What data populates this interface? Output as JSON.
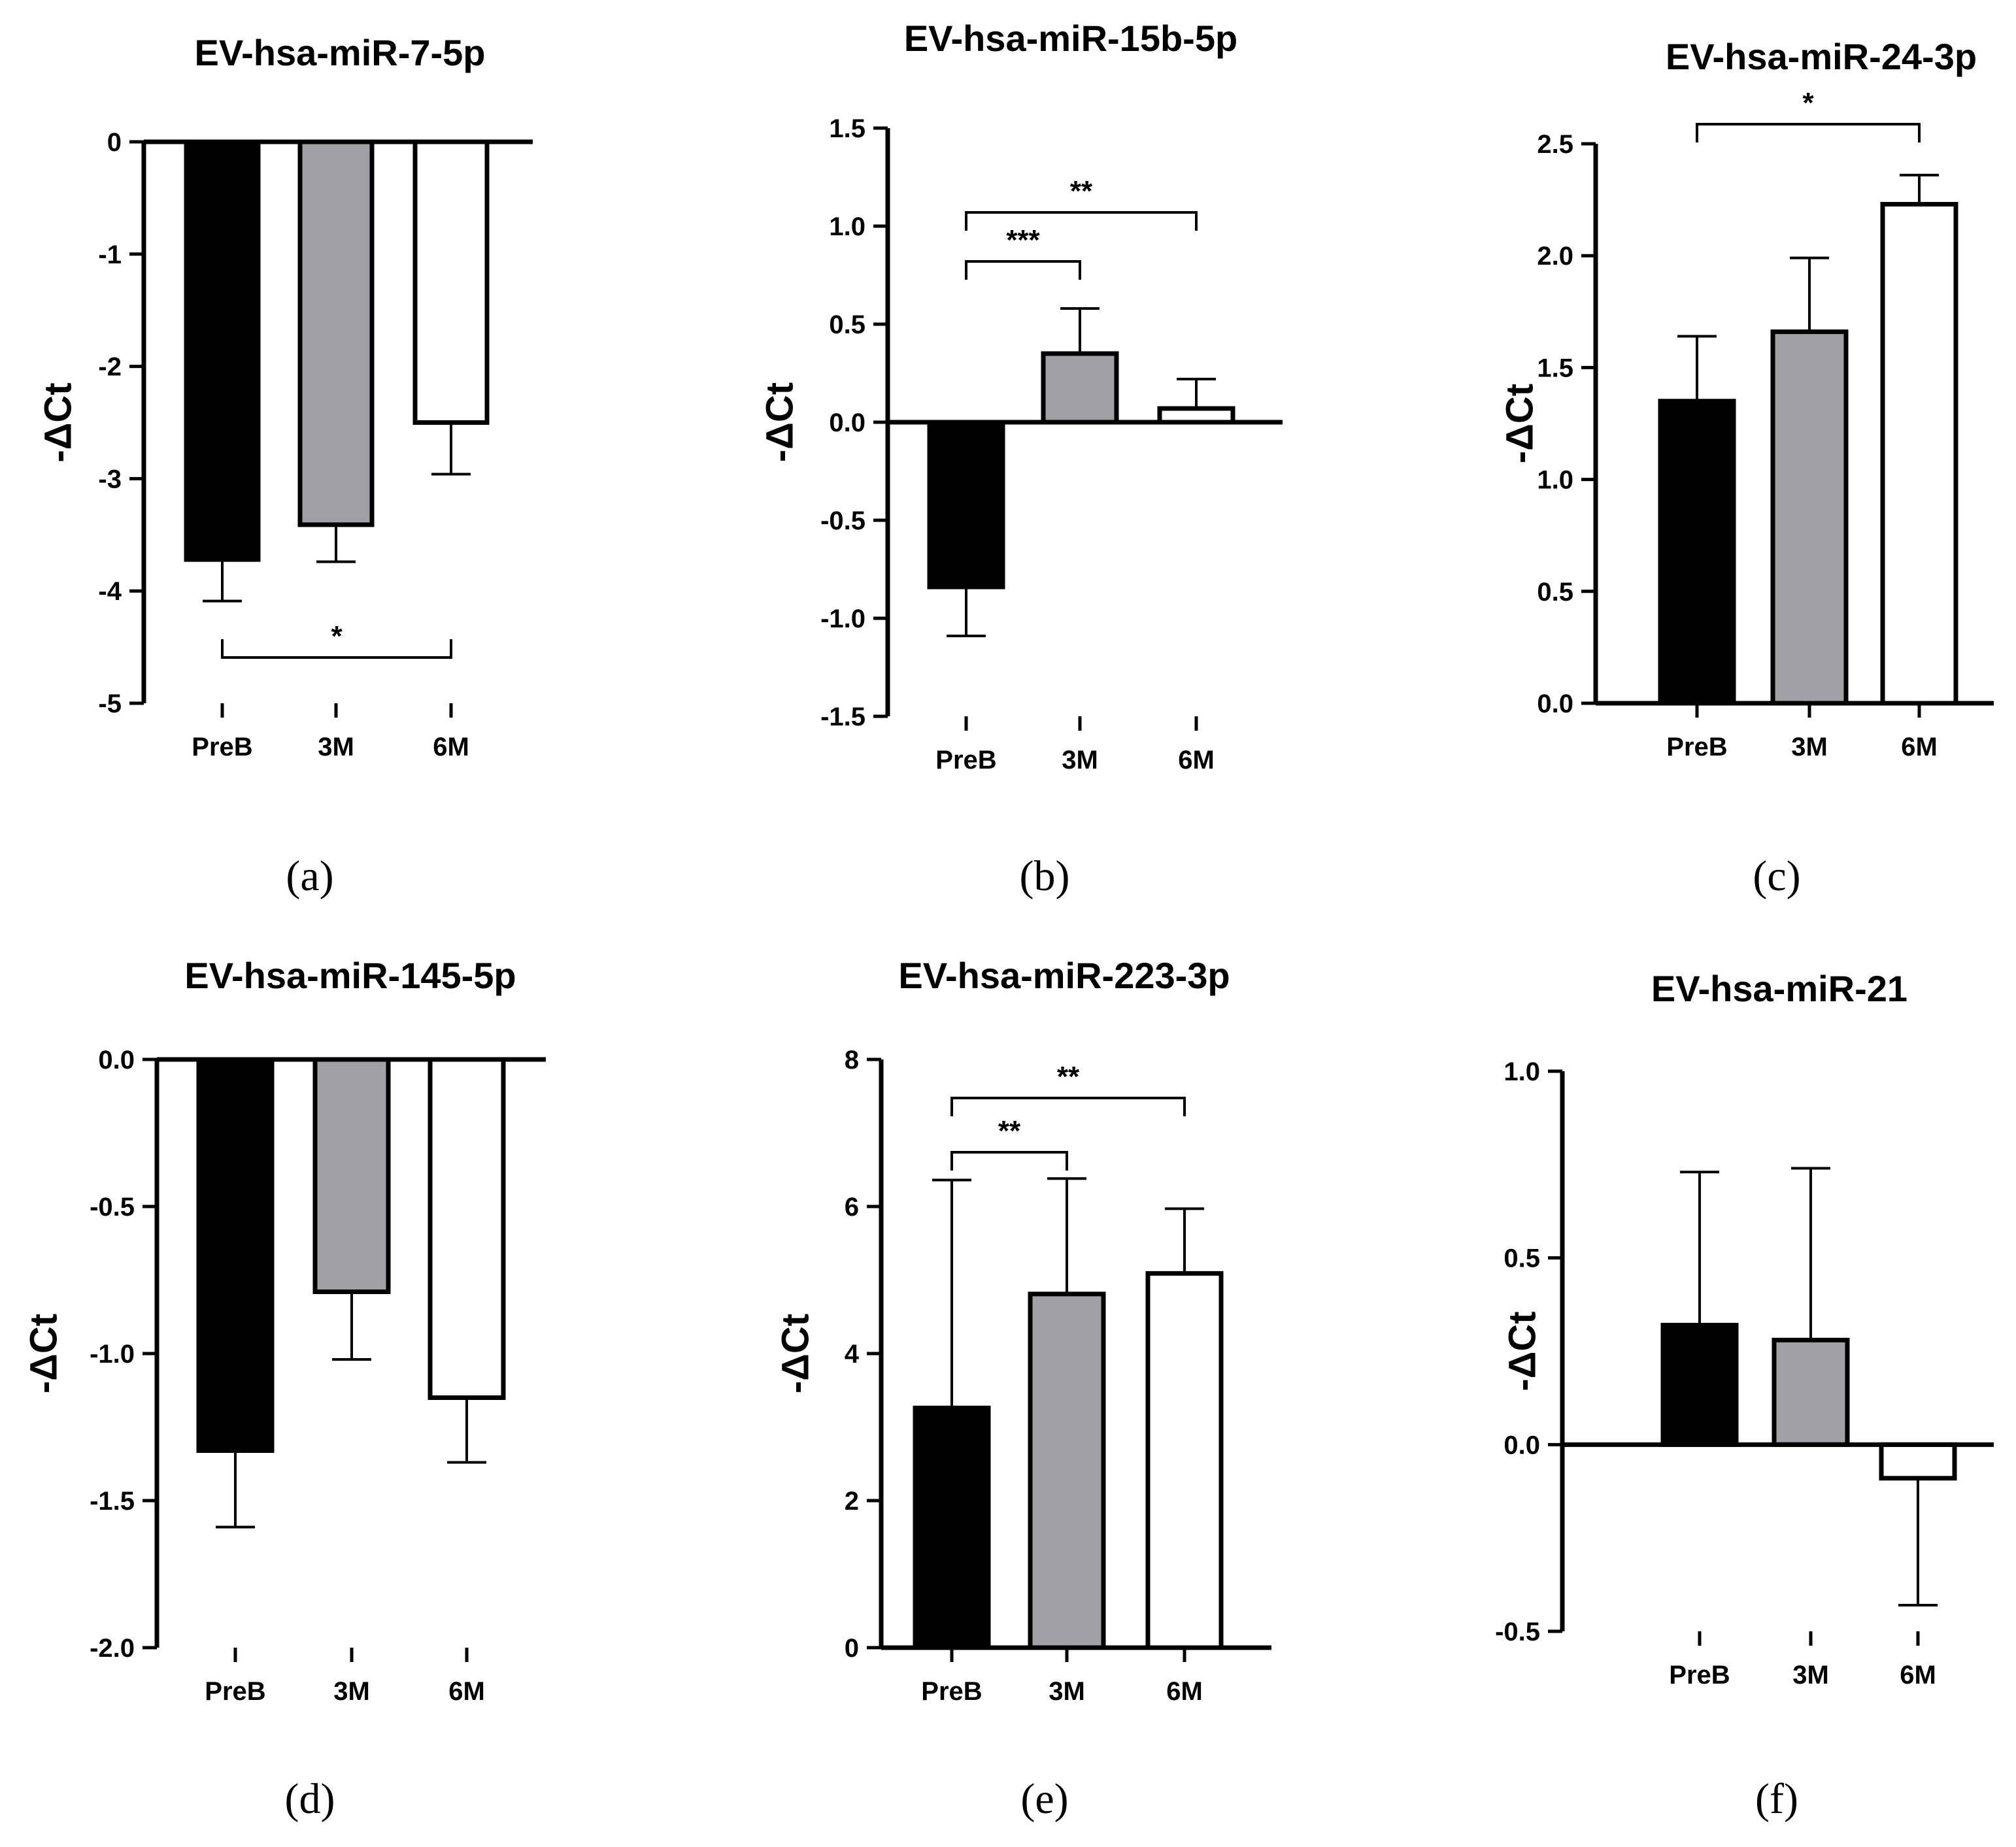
{
  "chart_data": [
    {
      "type": "bar",
      "panel": "(a)",
      "title": "EV-hsa-miR-7-5p",
      "ylabel": "-ΔCt",
      "categories": [
        "PreB",
        "3M",
        "6M"
      ],
      "values": [
        -3.72,
        -3.41,
        -2.5
      ],
      "errors": [
        0.37,
        0.33,
        0.46
      ],
      "bar_colors": [
        "#000000",
        "#a1a1a4",
        "#ffffff"
      ],
      "ylim": [
        -5,
        0
      ],
      "yticks": [
        0,
        -1,
        -2,
        -3,
        -4,
        -5
      ],
      "tick_labels": [
        "0",
        "-1",
        "-2",
        "-3",
        "-4",
        "-5"
      ],
      "brackets": [
        {
          "from": 0,
          "to": 2,
          "label": "*"
        }
      ]
    },
    {
      "type": "bar",
      "panel": "(b)",
      "title": "EV-hsa-miR-15b-5p",
      "ylabel": "-ΔCt",
      "categories": [
        "PreB",
        "3M",
        "6M"
      ],
      "values": [
        -0.84,
        0.35,
        0.07
      ],
      "errors": [
        0.25,
        0.23,
        0.15
      ],
      "bar_colors": [
        "#000000",
        "#a1a1a4",
        "#ffffff"
      ],
      "ylim": [
        -1.5,
        1.5
      ],
      "yticks": [
        1.5,
        1.0,
        0.5,
        0.0,
        -0.5,
        -1.0,
        -1.5
      ],
      "tick_labels": [
        "1.5",
        "1.0",
        "0.5",
        "0.0",
        "-0.5",
        "-1.0",
        "-1.5"
      ],
      "brackets": [
        {
          "from": 0,
          "to": 1,
          "label": "***"
        },
        {
          "from": 0,
          "to": 2,
          "label": "**"
        }
      ]
    },
    {
      "type": "bar",
      "panel": "(c)",
      "title": "EV-hsa-miR-24-3p",
      "ylabel": "-ΔCt",
      "categories": [
        "PreB",
        "3M",
        "6M"
      ],
      "values": [
        1.35,
        1.66,
        2.23
      ],
      "errors": [
        0.29,
        0.33,
        0.13
      ],
      "bar_colors": [
        "#000000",
        "#a1a1a4",
        "#ffffff"
      ],
      "ylim": [
        0,
        2.5
      ],
      "yticks": [
        2.5,
        2.0,
        1.5,
        1.0,
        0.5,
        0.0
      ],
      "tick_labels": [
        "2.5",
        "2.0",
        "1.5",
        "1.0",
        "0.5",
        "0.0"
      ],
      "brackets": [
        {
          "from": 0,
          "to": 2,
          "label": "*"
        }
      ]
    },
    {
      "type": "bar",
      "panel": "(d)",
      "title": "EV-hsa-miR-145-5p",
      "ylabel": "-ΔCt",
      "categories": [
        "PreB",
        "3M",
        "6M"
      ],
      "values": [
        -1.33,
        -0.79,
        -1.15
      ],
      "errors": [
        0.26,
        0.23,
        0.22
      ],
      "bar_colors": [
        "#000000",
        "#a1a1a4",
        "#ffffff"
      ],
      "ylim": [
        -2.0,
        0
      ],
      "yticks": [
        0.0,
        -0.5,
        -1.0,
        -1.5,
        -2.0
      ],
      "tick_labels": [
        "0.0",
        "-0.5",
        "-1.0",
        "-1.5",
        "-2.0"
      ],
      "brackets": []
    },
    {
      "type": "bar",
      "panel": "(e)",
      "title": "EV-hsa-miR-223-3p",
      "ylabel": "-ΔCt",
      "categories": [
        "PreB",
        "3M",
        "6M"
      ],
      "values": [
        3.26,
        4.81,
        5.09
      ],
      "errors": [
        3.1,
        1.57,
        0.88
      ],
      "bar_colors": [
        "#000000",
        "#a1a1a4",
        "#ffffff"
      ],
      "ylim": [
        0,
        8
      ],
      "yticks": [
        8,
        6,
        4,
        2,
        0
      ],
      "tick_labels": [
        "8",
        "6",
        "4",
        "2",
        "0"
      ],
      "brackets": [
        {
          "from": 0,
          "to": 1,
          "label": "**"
        },
        {
          "from": 0,
          "to": 2,
          "label": "**"
        }
      ]
    },
    {
      "type": "bar",
      "panel": "(f)",
      "title": "EV-hsa-miR-21",
      "ylabel": "-ΔCt",
      "categories": [
        "PreB",
        "3M",
        "6M"
      ],
      "values": [
        0.32,
        0.28,
        -0.09
      ],
      "errors": [
        0.41,
        0.46,
        0.34
      ],
      "bar_colors": [
        "#000000",
        "#a1a1a4",
        "#ffffff"
      ],
      "ylim": [
        -0.5,
        1.0
      ],
      "yticks": [
        1.0,
        0.5,
        0.0,
        -0.5
      ],
      "tick_labels": [
        "1.0",
        "0.5",
        "0.0",
        "-0.5"
      ],
      "brackets": []
    }
  ]
}
